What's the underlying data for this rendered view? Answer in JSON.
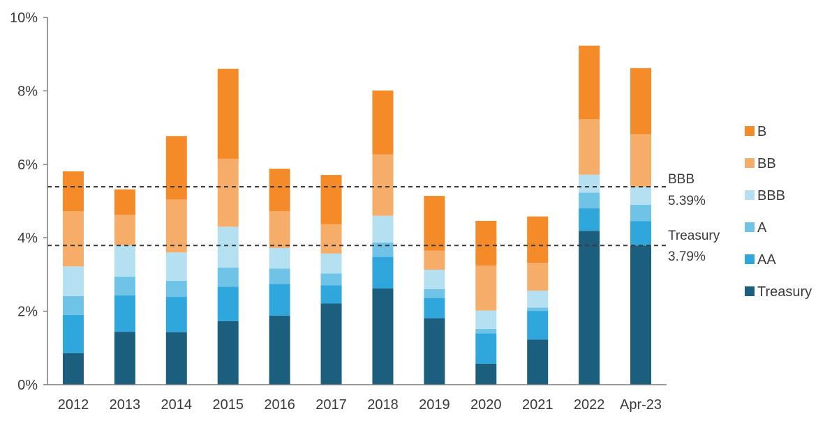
{
  "chart_data": {
    "type": "bar",
    "stacked": true,
    "categories": [
      "2012",
      "2013",
      "2014",
      "2015",
      "2016",
      "2017",
      "2018",
      "2019",
      "2020",
      "2021",
      "2022",
      "Apr-23"
    ],
    "series": [
      {
        "name": "Treasury",
        "color": "#1b5e7e",
        "values": [
          0.86,
          1.44,
          1.43,
          1.73,
          1.88,
          2.21,
          2.62,
          1.81,
          0.57,
          1.23,
          4.19,
          3.79
        ]
      },
      {
        "name": "AA",
        "color": "#2fa7dd",
        "values": [
          1.04,
          0.99,
          0.96,
          0.94,
          0.86,
          0.5,
          0.86,
          0.55,
          0.83,
          0.78,
          0.61,
          0.66
        ]
      },
      {
        "name": "A",
        "color": "#6fc3e6",
        "values": [
          0.51,
          0.51,
          0.44,
          0.52,
          0.42,
          0.32,
          0.39,
          0.24,
          0.12,
          0.09,
          0.43,
          0.45
        ]
      },
      {
        "name": "BBB",
        "color": "#b5e0f1",
        "values": [
          0.81,
          0.86,
          0.77,
          1.11,
          0.56,
          0.54,
          0.73,
          0.53,
          0.5,
          0.46,
          0.49,
          0.49
        ]
      },
      {
        "name": "BB",
        "color": "#f7ad6a",
        "values": [
          1.5,
          0.83,
          1.44,
          1.85,
          1.0,
          0.8,
          1.67,
          0.52,
          1.22,
          0.76,
          1.51,
          1.43
        ]
      },
      {
        "name": "B",
        "color": "#f48a28",
        "values": [
          1.09,
          0.69,
          1.73,
          2.45,
          1.16,
          1.34,
          1.74,
          1.49,
          1.22,
          1.26,
          2.0,
          1.8
        ]
      }
    ],
    "ylim": [
      0,
      10
    ],
    "yticks": [
      "0%",
      "2%",
      "4%",
      "6%",
      "8%",
      "10%"
    ],
    "ytick_values": [
      0,
      2,
      4,
      6,
      8,
      10
    ],
    "legend_order": [
      "B",
      "BB",
      "BBB",
      "A",
      "AA",
      "Treasury"
    ],
    "legend_position": "right",
    "grid": false,
    "reference_lines": [
      {
        "label": "BBB",
        "value_text": "5.39%",
        "value": 5.39,
        "style": "dashed"
      },
      {
        "label": "Treasury",
        "value_text": "3.79%",
        "value": 3.79,
        "style": "dashed"
      }
    ]
  }
}
